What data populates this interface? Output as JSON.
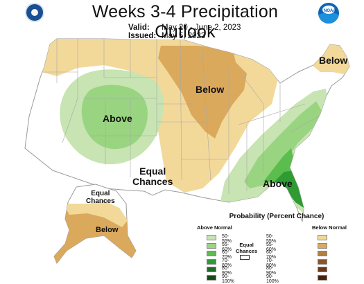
{
  "header": {
    "title": "Weeks 3-4 Precipitation Outlook",
    "valid_label": "Valid:",
    "valid_value": "May 20 - June 2, 2023",
    "issued_label": "Issued:",
    "issued_value": "May 5, 2023",
    "left_logo_icon": "department-seal-icon",
    "right_logo_icon": "noaa-logo-icon",
    "right_logo_text": "NOAA"
  },
  "map": {
    "regions": [
      {
        "label": "Below",
        "category": "below"
      },
      {
        "label": "Above",
        "category": "above"
      },
      {
        "label": "Equal\nChances",
        "category": "equal"
      },
      {
        "label": "Above",
        "category": "above"
      },
      {
        "label": "Below",
        "category": "below"
      },
      {
        "label": "Equal\nChances",
        "category": "equal"
      },
      {
        "label": "Below",
        "category": "below"
      }
    ]
  },
  "legend": {
    "title": "Probability (Percent Chance)",
    "above_header": "Above Normal",
    "below_header": "Below Normal",
    "equal_label": "Equal\nChances",
    "above": [
      {
        "range": "50-55%",
        "color": "#c7e4b2"
      },
      {
        "range": "55-60%",
        "color": "#99d480"
      },
      {
        "range": "60-70%",
        "color": "#5bbd4d"
      },
      {
        "range": "70-80%",
        "color": "#2e9b33"
      },
      {
        "range": "80-90%",
        "color": "#1d6e24"
      },
      {
        "range": "90-100%",
        "color": "#134a16"
      }
    ],
    "below": [
      {
        "range": "50-55%",
        "color": "#f2d99a"
      },
      {
        "range": "55-60%",
        "color": "#dba95c"
      },
      {
        "range": "60-70%",
        "color": "#b77d3a"
      },
      {
        "range": "70-80%",
        "color": "#8f5425"
      },
      {
        "range": "80-90%",
        "color": "#6b3715"
      },
      {
        "range": "90-100%",
        "color": "#4a200b"
      }
    ]
  },
  "colors": {
    "below_light": "#f2d99a",
    "below_mid": "#dba95c",
    "above_light": "#c7e4b2",
    "above_mid": "#99d480",
    "above_strong": "#5bbd4d",
    "above_darker": "#2e9b33",
    "land": "#ffffff",
    "border": "#9a9a9a"
  }
}
